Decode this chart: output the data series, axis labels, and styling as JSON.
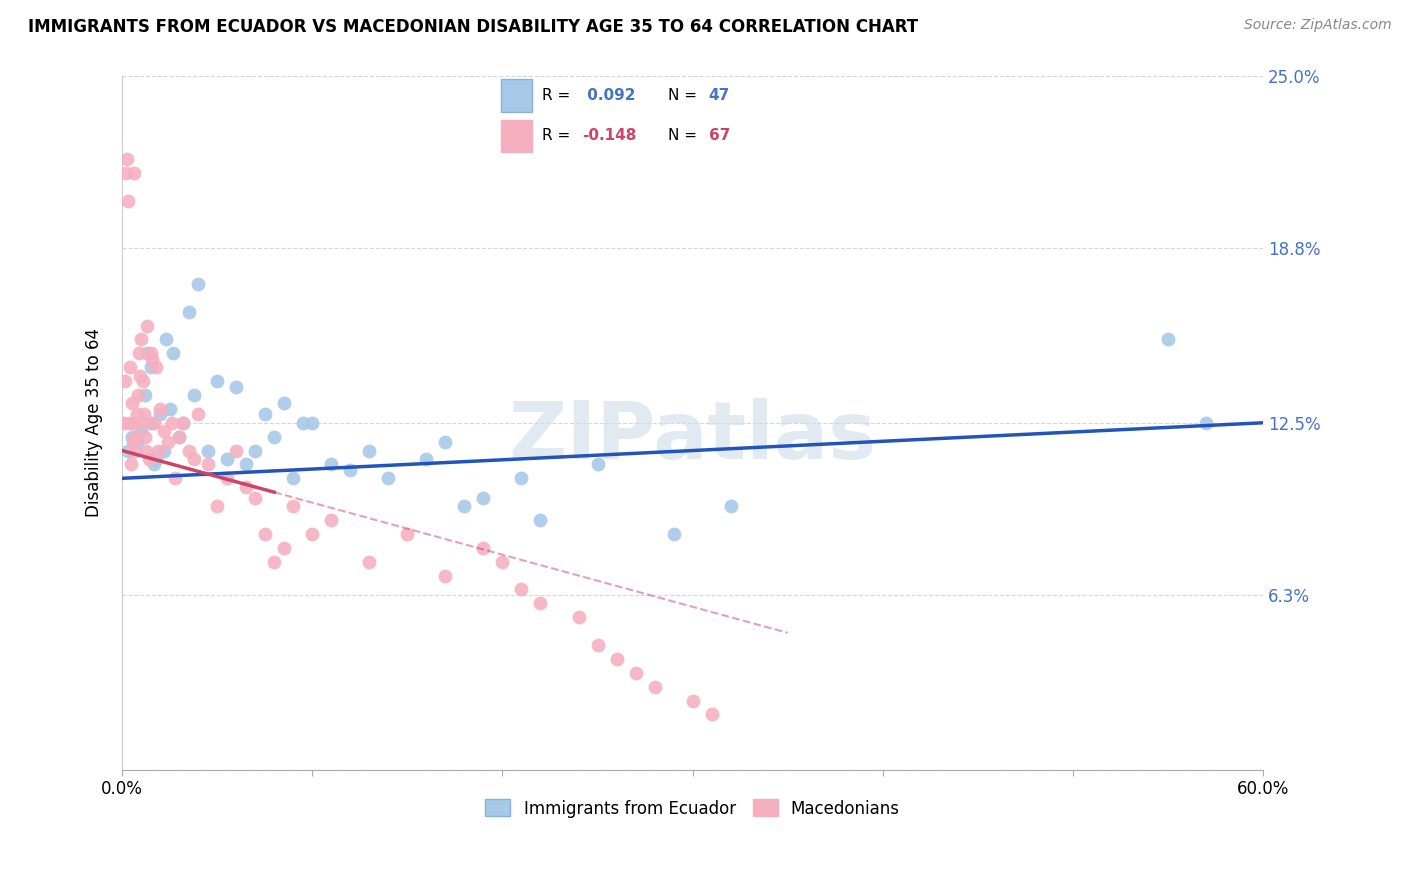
{
  "title": "IMMIGRANTS FROM ECUADOR VS MACEDONIAN DISABILITY AGE 35 TO 64 CORRELATION CHART",
  "source": "Source: ZipAtlas.com",
  "xmin": 0,
  "xmax": 60,
  "ymin": 0,
  "ymax": 25,
  "ytick_vals": [
    0,
    6.3,
    12.5,
    18.8,
    25.0
  ],
  "xtick_vals": [
    0,
    10,
    20,
    30,
    40,
    50,
    60
  ],
  "watermark": "ZIPatlas",
  "color_ecuador": "#a8c8e8",
  "color_macedonian": "#f5b0c0",
  "color_line_ecuador": "#2255bb",
  "color_line_macedonian": "#cc4466",
  "color_right_axis": "#4472c4",
  "ecuador_R": 0.092,
  "ecuador_N": 47,
  "macedonian_R": -0.148,
  "macedonian_N": 67,
  "ecuador_x": [
    0.3,
    0.5,
    0.8,
    1.0,
    1.2,
    1.3,
    1.5,
    1.5,
    1.7,
    1.8,
    2.0,
    2.2,
    2.3,
    2.5,
    2.7,
    3.0,
    3.2,
    3.5,
    3.8,
    4.0,
    4.5,
    5.0,
    5.5,
    6.0,
    6.5,
    7.0,
    7.5,
    8.0,
    8.5,
    9.0,
    9.5,
    10.0,
    11.0,
    12.0,
    13.0,
    14.0,
    16.0,
    17.0,
    18.0,
    19.0,
    21.0,
    22.0,
    25.0,
    29.0,
    32.0,
    55.0,
    57.0
  ],
  "ecuador_y": [
    11.5,
    12.0,
    11.8,
    12.2,
    13.5,
    15.0,
    12.5,
    14.5,
    11.0,
    11.2,
    12.8,
    11.5,
    15.5,
    13.0,
    15.0,
    12.0,
    12.5,
    16.5,
    13.5,
    17.5,
    11.5,
    14.0,
    11.2,
    13.8,
    11.0,
    11.5,
    12.8,
    12.0,
    13.2,
    10.5,
    12.5,
    12.5,
    11.0,
    10.8,
    11.5,
    10.5,
    11.2,
    11.8,
    9.5,
    9.8,
    10.5,
    9.0,
    11.0,
    8.5,
    9.5,
    15.5,
    12.5
  ],
  "macedonian_x": [
    0.1,
    0.15,
    0.2,
    0.25,
    0.3,
    0.35,
    0.4,
    0.45,
    0.5,
    0.55,
    0.6,
    0.65,
    0.7,
    0.75,
    0.8,
    0.85,
    0.9,
    0.95,
    1.0,
    1.05,
    1.1,
    1.15,
    1.2,
    1.25,
    1.3,
    1.4,
    1.5,
    1.6,
    1.7,
    1.8,
    1.9,
    2.0,
    2.2,
    2.4,
    2.6,
    2.8,
    3.0,
    3.2,
    3.5,
    3.8,
    4.0,
    4.5,
    5.0,
    5.5,
    6.0,
    6.5,
    7.0,
    7.5,
    8.0,
    8.5,
    9.0,
    10.0,
    11.0,
    13.0,
    15.0,
    17.0,
    19.0,
    20.0,
    21.0,
    22.0,
    24.0,
    25.0,
    26.0,
    27.0,
    28.0,
    30.0,
    31.0
  ],
  "macedonian_y": [
    12.5,
    14.0,
    21.5,
    22.0,
    20.5,
    12.5,
    14.5,
    11.0,
    13.2,
    12.5,
    11.8,
    21.5,
    11.5,
    12.0,
    12.8,
    13.5,
    15.0,
    14.2,
    15.5,
    12.5,
    14.0,
    12.8,
    12.0,
    11.5,
    16.0,
    11.2,
    15.0,
    14.8,
    12.5,
    14.5,
    11.5,
    13.0,
    12.2,
    11.8,
    12.5,
    10.5,
    12.0,
    12.5,
    11.5,
    11.2,
    12.8,
    11.0,
    9.5,
    10.5,
    11.5,
    10.2,
    9.8,
    8.5,
    7.5,
    8.0,
    9.5,
    8.5,
    9.0,
    7.5,
    8.5,
    7.0,
    8.0,
    7.5,
    6.5,
    6.0,
    5.5,
    4.5,
    4.0,
    3.5,
    3.0,
    2.5,
    2.0
  ],
  "macedonian_solid_xmax": 8.0
}
